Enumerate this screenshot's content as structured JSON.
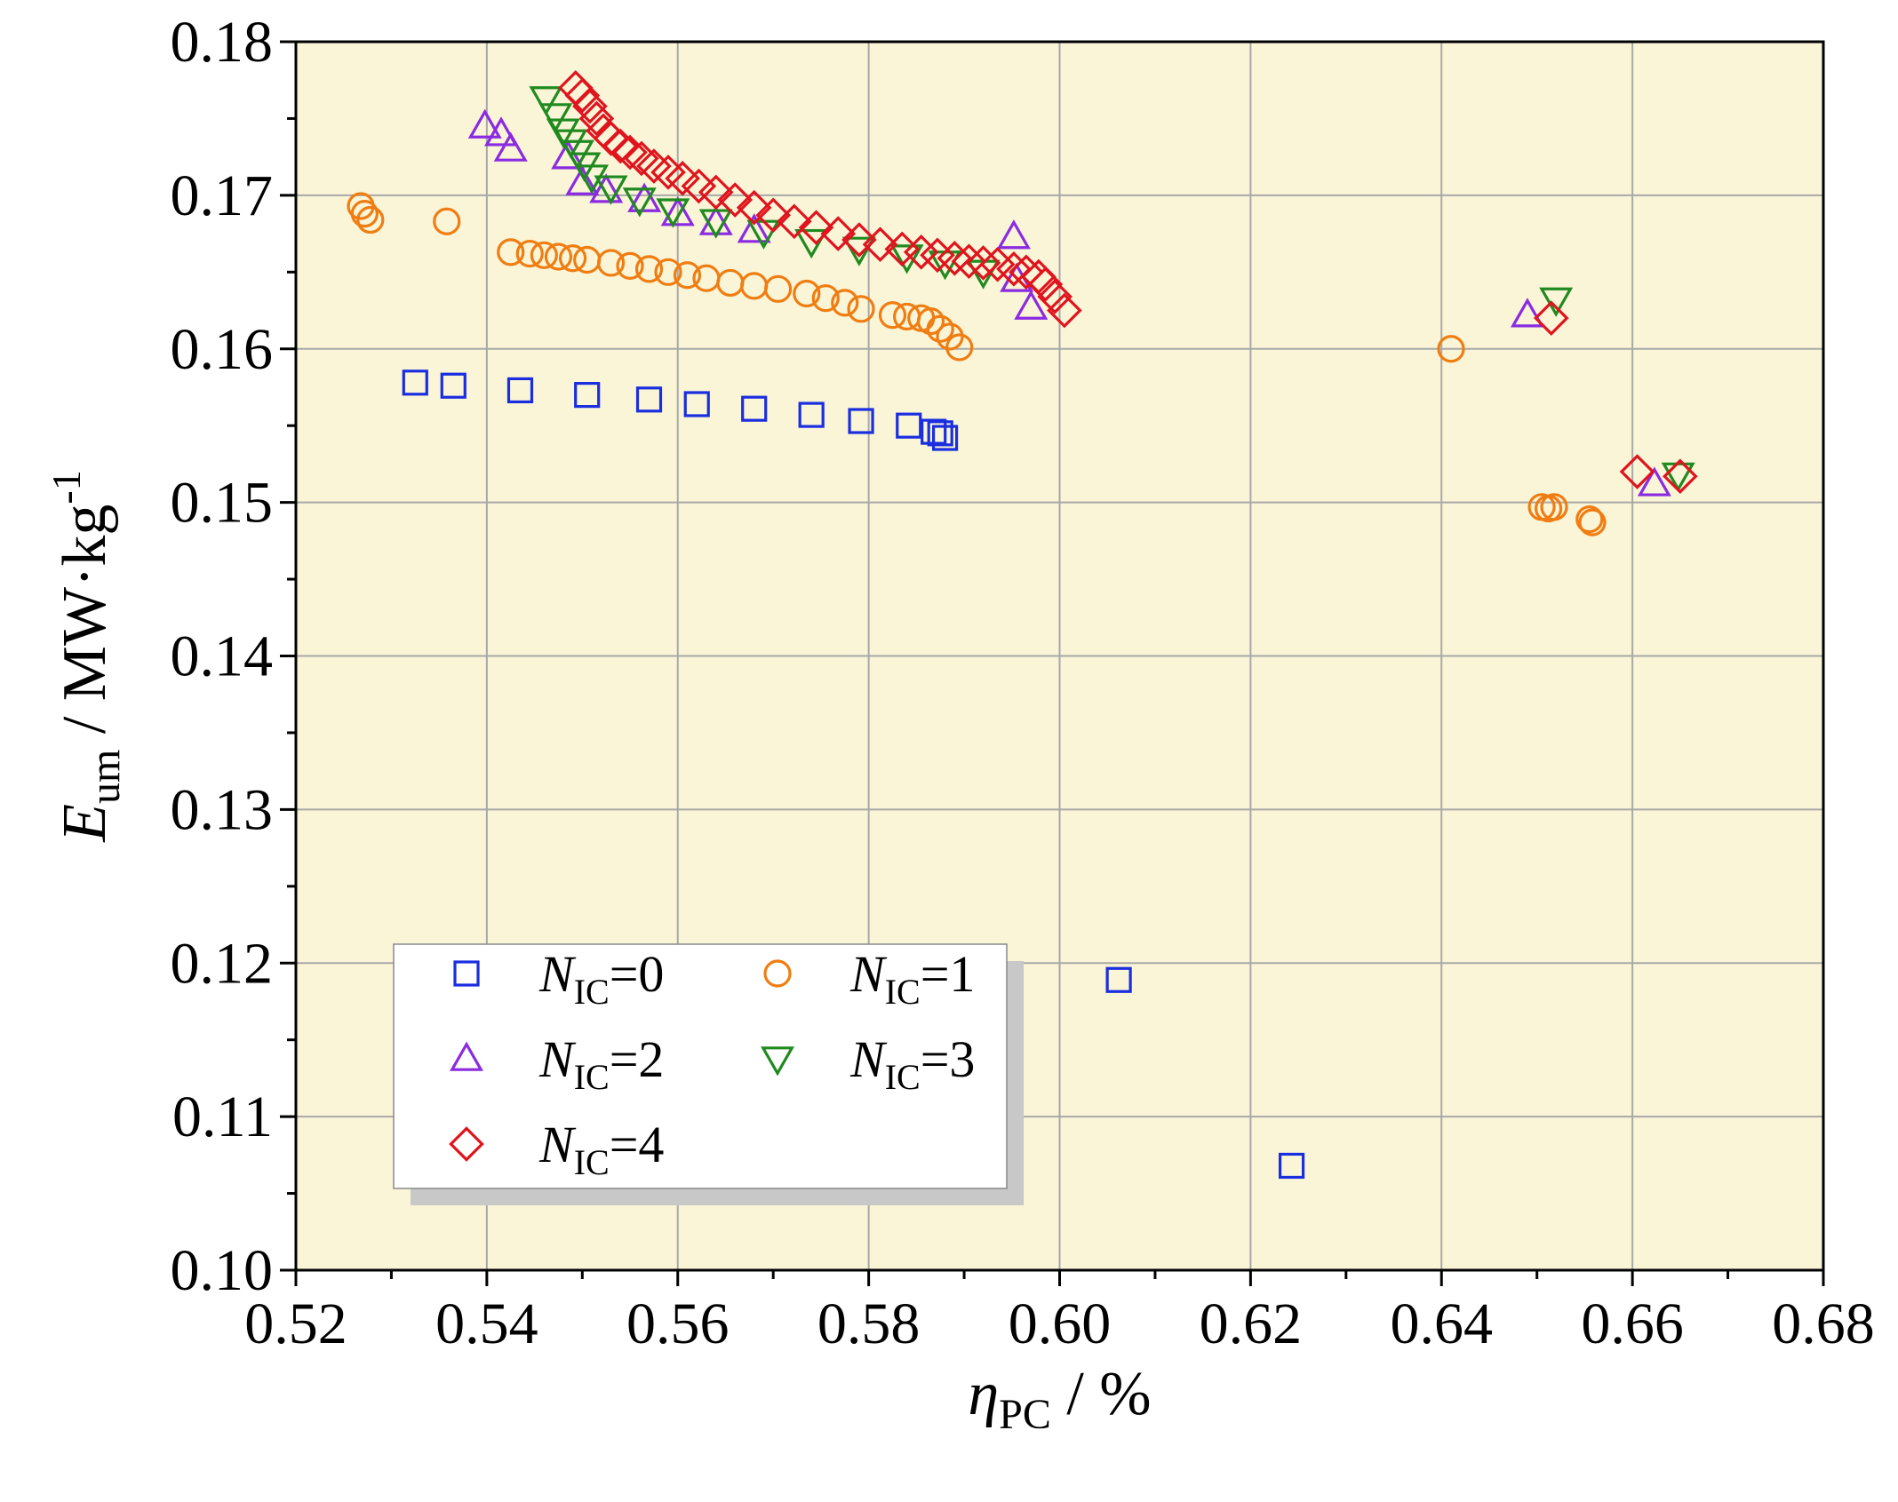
{
  "chart_data": {
    "type": "scatter",
    "xlabel": {
      "main": "η",
      "sub": "PC",
      "unit": " / %"
    },
    "ylabel": {
      "main": "E",
      "sub": "um",
      "unit": " / MW·kg",
      "sup": "-1"
    },
    "xlim": [
      0.52,
      0.68
    ],
    "ylim": [
      0.1,
      0.18
    ],
    "xticks": [
      "0.52",
      "0.54",
      "0.56",
      "0.58",
      "0.60",
      "0.62",
      "0.64",
      "0.66",
      "0.68"
    ],
    "yticks": [
      "0.10",
      "0.11",
      "0.12",
      "0.13",
      "0.14",
      "0.15",
      "0.16",
      "0.17",
      "0.18"
    ],
    "grid": true,
    "background": "#faf5d7",
    "legend_position": "bottom-left",
    "series": [
      {
        "name": "N_IC=0",
        "label_main": "N",
        "label_sub": "IC",
        "label_tail": "=0",
        "marker": "square",
        "color": "#1a2ee0",
        "points": [
          [
            0.5325,
            0.1578
          ],
          [
            0.5365,
            0.1576
          ],
          [
            0.5435,
            0.1573
          ],
          [
            0.5505,
            0.157
          ],
          [
            0.557,
            0.1567
          ],
          [
            0.562,
            0.1564
          ],
          [
            0.568,
            0.1561
          ],
          [
            0.574,
            0.1557
          ],
          [
            0.5792,
            0.1553
          ],
          [
            0.5842,
            0.155
          ],
          [
            0.5868,
            0.1546
          ],
          [
            0.5875,
            0.1545
          ],
          [
            0.588,
            0.1542
          ],
          [
            0.6062,
            0.1189
          ],
          [
            0.6243,
            0.1068
          ]
        ]
      },
      {
        "name": "N_IC=1",
        "label_main": "N",
        "label_sub": "IC",
        "label_tail": "=1",
        "marker": "circle",
        "color": "#f07d12",
        "points": [
          [
            0.5268,
            0.1693
          ],
          [
            0.5272,
            0.1688
          ],
          [
            0.5278,
            0.1684
          ],
          [
            0.5358,
            0.1683
          ],
          [
            0.5425,
            0.1663
          ],
          [
            0.5445,
            0.1662
          ],
          [
            0.546,
            0.1661
          ],
          [
            0.5475,
            0.166
          ],
          [
            0.549,
            0.1659
          ],
          [
            0.5505,
            0.1658
          ],
          [
            0.553,
            0.1656
          ],
          [
            0.555,
            0.1654
          ],
          [
            0.557,
            0.1652
          ],
          [
            0.559,
            0.165
          ],
          [
            0.561,
            0.1648
          ],
          [
            0.563,
            0.1646
          ],
          [
            0.5655,
            0.1643
          ],
          [
            0.568,
            0.1641
          ],
          [
            0.5705,
            0.1639
          ],
          [
            0.5735,
            0.1636
          ],
          [
            0.5755,
            0.1633
          ],
          [
            0.5775,
            0.163
          ],
          [
            0.5792,
            0.1626
          ],
          [
            0.5825,
            0.1622
          ],
          [
            0.584,
            0.1621
          ],
          [
            0.5855,
            0.162
          ],
          [
            0.5865,
            0.1618
          ],
          [
            0.5875,
            0.1613
          ],
          [
            0.5885,
            0.1608
          ],
          [
            0.5895,
            0.1601
          ],
          [
            0.641,
            0.16
          ],
          [
            0.6505,
            0.1497
          ],
          [
            0.6512,
            0.1496
          ],
          [
            0.6518,
            0.1497
          ],
          [
            0.6555,
            0.1489
          ],
          [
            0.6558,
            0.1487
          ]
        ]
      },
      {
        "name": "N_IC=2",
        "label_main": "N",
        "label_sub": "IC",
        "label_tail": "=2",
        "marker": "triangle-up",
        "color": "#8a2be2",
        "points": [
          [
            0.5398,
            0.1745
          ],
          [
            0.5415,
            0.174
          ],
          [
            0.5425,
            0.173
          ],
          [
            0.5485,
            0.1725
          ],
          [
            0.55,
            0.1708
          ],
          [
            0.5525,
            0.1703
          ],
          [
            0.5565,
            0.1697
          ],
          [
            0.56,
            0.1688
          ],
          [
            0.564,
            0.1682
          ],
          [
            0.568,
            0.1677
          ],
          [
            0.5952,
            0.1673
          ],
          [
            0.5955,
            0.1645
          ],
          [
            0.597,
            0.1627
          ],
          [
            0.649,
            0.1622
          ],
          [
            0.6623,
            0.1512
          ]
        ]
      },
      {
        "name": "N_IC=3",
        "label_main": "N",
        "label_sub": "IC",
        "label_tail": "=3",
        "marker": "triangle-down",
        "color": "#1f8a1f",
        "points": [
          [
            0.5462,
            0.1763
          ],
          [
            0.5472,
            0.1752
          ],
          [
            0.548,
            0.1742
          ],
          [
            0.5488,
            0.1735
          ],
          [
            0.5495,
            0.1728
          ],
          [
            0.5502,
            0.172
          ],
          [
            0.551,
            0.1712
          ],
          [
            0.553,
            0.1705
          ],
          [
            0.556,
            0.1697
          ],
          [
            0.5595,
            0.169
          ],
          [
            0.564,
            0.1683
          ],
          [
            0.569,
            0.1676
          ],
          [
            0.574,
            0.167
          ],
          [
            0.579,
            0.1665
          ],
          [
            0.584,
            0.166
          ],
          [
            0.588,
            0.1656
          ],
          [
            0.592,
            0.165
          ],
          [
            0.652,
            0.1632
          ],
          [
            0.6648,
            0.1518
          ]
        ]
      },
      {
        "name": "N_IC=4",
        "label_main": "N",
        "label_sub": "IC",
        "label_tail": "=4",
        "marker": "diamond",
        "color": "#e0141e",
        "points": [
          [
            0.5493,
            0.177
          ],
          [
            0.55,
            0.1765
          ],
          [
            0.5508,
            0.1758
          ],
          [
            0.5515,
            0.175
          ],
          [
            0.5522,
            0.1742
          ],
          [
            0.553,
            0.1737
          ],
          [
            0.554,
            0.1732
          ],
          [
            0.555,
            0.1728
          ],
          [
            0.5562,
            0.1724
          ],
          [
            0.5575,
            0.1719
          ],
          [
            0.559,
            0.1715
          ],
          [
            0.5605,
            0.1711
          ],
          [
            0.5622,
            0.1706
          ],
          [
            0.564,
            0.1702
          ],
          [
            0.566,
            0.1697
          ],
          [
            0.568,
            0.1692
          ],
          [
            0.57,
            0.1687
          ],
          [
            0.5722,
            0.1683
          ],
          [
            0.5745,
            0.1679
          ],
          [
            0.5768,
            0.1675
          ],
          [
            0.579,
            0.1671
          ],
          [
            0.5812,
            0.1668
          ],
          [
            0.5835,
            0.1665
          ],
          [
            0.5855,
            0.1663
          ],
          [
            0.5872,
            0.1661
          ],
          [
            0.589,
            0.1659
          ],
          [
            0.5905,
            0.1657
          ],
          [
            0.592,
            0.1656
          ],
          [
            0.5935,
            0.1655
          ],
          [
            0.5952,
            0.1652
          ],
          [
            0.5965,
            0.165
          ],
          [
            0.5978,
            0.1647
          ],
          [
            0.5985,
            0.1642
          ],
          [
            0.5995,
            0.1634
          ],
          [
            0.6005,
            0.1625
          ],
          [
            0.6515,
            0.162
          ],
          [
            0.6605,
            0.152
          ],
          [
            0.665,
            0.1517
          ]
        ]
      }
    ]
  }
}
